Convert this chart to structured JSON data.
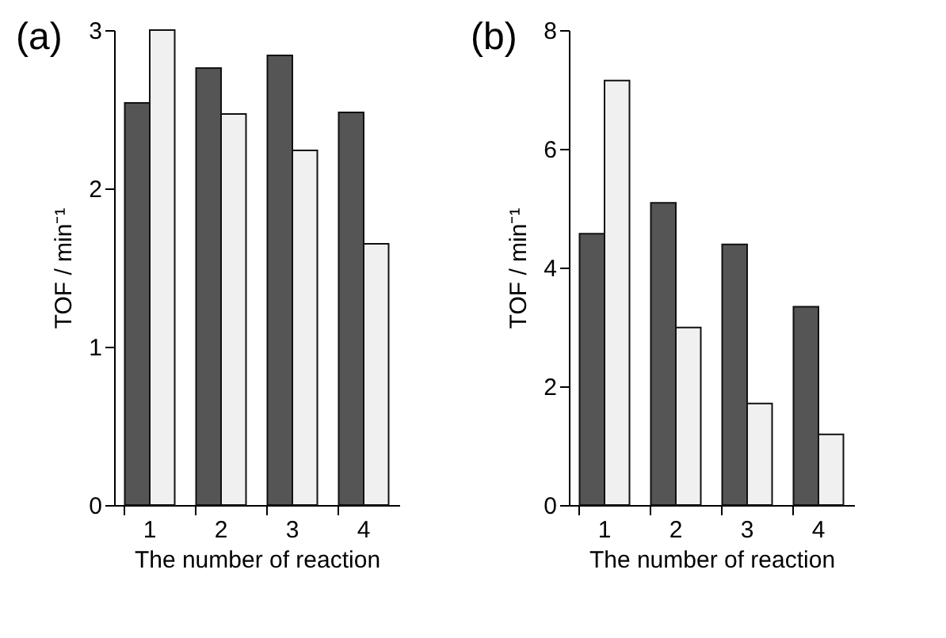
{
  "chart_data": [
    {
      "type": "bar",
      "title": "(a)",
      "xlabel": "The number of reaction",
      "ylabel": "TOF / min⁻¹",
      "categories": [
        "1",
        "2",
        "3",
        "4"
      ],
      "series": [
        {
          "color": "#555555",
          "values": [
            2.54,
            2.76,
            2.84,
            2.48
          ]
        },
        {
          "color": "#f0f0f0",
          "values": [
            3.0,
            2.47,
            2.24,
            1.65
          ]
        }
      ],
      "ylim": [
        0,
        3
      ],
      "yticks": [
        0,
        1,
        2,
        3
      ],
      "grid": false,
      "legend": false
    },
    {
      "type": "bar",
      "title": "(b)",
      "xlabel": "The number of reaction",
      "ylabel": "TOF / min⁻¹",
      "categories": [
        "1",
        "2",
        "3",
        "4"
      ],
      "series": [
        {
          "color": "#555555",
          "values": [
            4.57,
            5.09,
            4.39,
            3.34
          ]
        },
        {
          "color": "#f0f0f0",
          "values": [
            7.15,
            2.99,
            1.71,
            1.19
          ]
        }
      ],
      "ylim": [
        0,
        8
      ],
      "yticks": [
        0,
        2,
        4,
        6,
        8
      ],
      "grid": false,
      "legend": false
    }
  ]
}
